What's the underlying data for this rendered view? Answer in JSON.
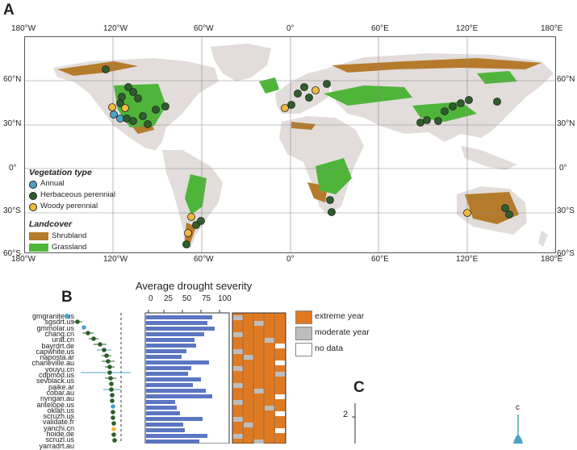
{
  "panels": {
    "a": "A",
    "b": "B",
    "c": "C"
  },
  "map": {
    "lon_labels": [
      "180°W",
      "120°W",
      "60°W",
      "0°",
      "60°E",
      "120°E",
      "180°E"
    ],
    "lat_labels": [
      "60°N",
      "30°N",
      "0°",
      "30°S",
      "60°S"
    ],
    "colors": {
      "shrubland": "#b57b2c",
      "grassland": "#4fb53a",
      "land": "#e2dddb",
      "annual": "#4aa3c8",
      "herbaceous": "#2e5e2b",
      "woody": "#f1b940"
    },
    "legend": {
      "vegetation_title": "Vegetation type",
      "vegetation_items": [
        "Annual",
        "Herbaceous perennial",
        "Woody perennial"
      ],
      "landcover_title": "Landcover",
      "landcover_items": [
        "Shrubland",
        "Grassland"
      ]
    }
  },
  "panel_b": {
    "severity_title": "Average drought severity",
    "severity_ticks": [
      "0",
      "25",
      "50",
      "75",
      "100"
    ],
    "sites": [
      "gmgranite.us",
      "sgsdrt.us",
      "gmmolar.us",
      "chang.cn",
      "urat.cn",
      "bayrdrt.de",
      "capwhite.us",
      "naposta.ar",
      "charleville.au",
      "youyu.cn",
      "cdpmod.us",
      "sevblack.us",
      "paike.ar",
      "cobar.au",
      "nyngan.au",
      "antelope.us",
      "oklah.us",
      "scruzh.us",
      "validate.fr",
      "yanchi.cn",
      "hoide.de",
      "scruzl.us",
      "yarradrt.au"
    ],
    "legend": [
      "extreme year",
      "moderate year",
      "no data"
    ],
    "colors": {
      "extreme": "#e07a22",
      "moderate": "#bdbdbd",
      "nodata": "#ffffff",
      "bar": "#5b76c2"
    }
  },
  "panel_c": {
    "y_tick": "2",
    "annotation": "c"
  }
}
